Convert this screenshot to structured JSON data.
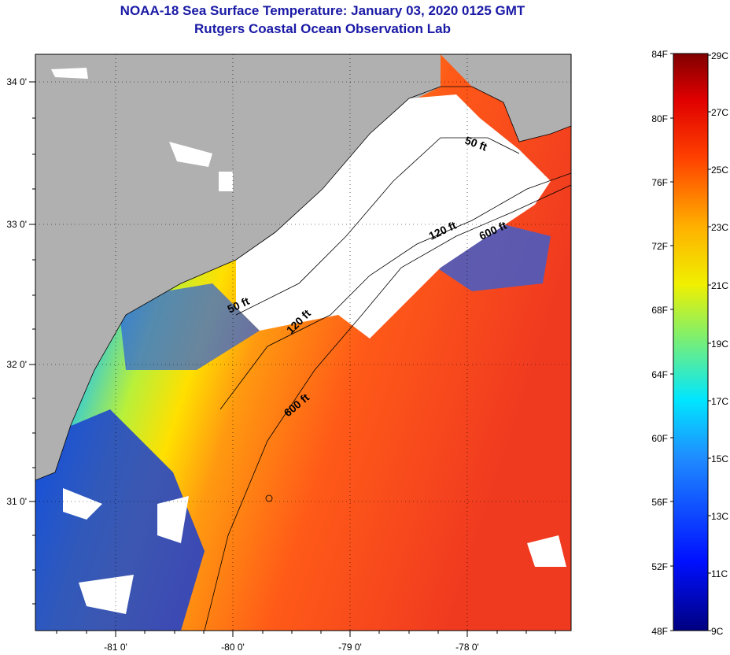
{
  "title": "NOAA-18 Sea Surface Temperature:  January 03, 2020 0125 GMT",
  "subtitle": "Rutgers Coastal Ocean Observation Lab",
  "lat_labels": [
    "34 0'",
    "33 0'",
    "32 0'",
    "31 0'"
  ],
  "lon_labels": [
    "-81 0'",
    "-80 0'",
    "-79 0'",
    "-78 0'"
  ],
  "contours": [
    "50 ft",
    "120 ft",
    "600 ft",
    "50 ft",
    "120 ft",
    "600 ft"
  ],
  "colorbar": {
    "f_labels": [
      "84F",
      "80F",
      "76F",
      "72F",
      "68F",
      "64F",
      "60F",
      "56F",
      "52F",
      "48F"
    ],
    "c_labels": [
      "29C",
      "27C",
      "25C",
      "23C",
      "21C",
      "19C",
      "17C",
      "15C",
      "13C",
      "11C",
      "9C"
    ]
  },
  "colors": {
    "land": "#b0b0b0",
    "cloud": "#ffffff",
    "title": "#1a1aa6"
  }
}
